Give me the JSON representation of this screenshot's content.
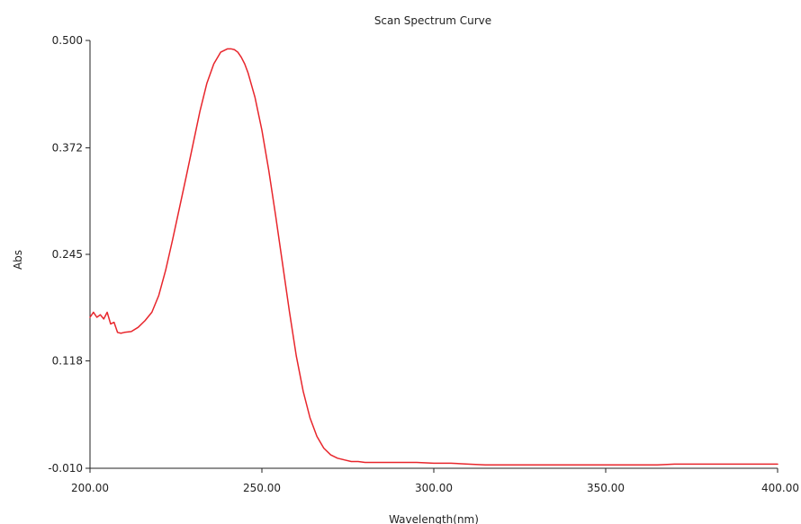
{
  "chart_data": {
    "type": "line",
    "title": "Scan Spectrum Curve",
    "xlabel": "Wavelength(nm)",
    "ylabel": "Abs",
    "xlim": [
      200,
      400
    ],
    "ylim": [
      -0.01,
      0.5
    ],
    "x_ticks": [
      "200.00",
      "250.00",
      "300.00",
      "350.00",
      "400.00"
    ],
    "x_tick_values": [
      200,
      250,
      300,
      350,
      400
    ],
    "y_ticks": [
      "0.500",
      "0.372",
      "0.245",
      "0.118",
      "-0.010"
    ],
    "y_tick_values": [
      0.5,
      0.372,
      0.245,
      0.118,
      -0.01
    ],
    "grid": false,
    "legend": "none",
    "color": "#e8262c",
    "series": [
      {
        "x": [
          200,
          201,
          202,
          203,
          204,
          205,
          206,
          207,
          208,
          209,
          210,
          212,
          214,
          216,
          218,
          220,
          222,
          224,
          226,
          228,
          230,
          232,
          234,
          236,
          238,
          240,
          241,
          242,
          243,
          244,
          245,
          246,
          248,
          250,
          252,
          254,
          256,
          258,
          260,
          262,
          264,
          266,
          268,
          270,
          272,
          274,
          276,
          278,
          280,
          285,
          290,
          295,
          300,
          305,
          310,
          315,
          320,
          325,
          330,
          335,
          340,
          345,
          350,
          355,
          360,
          365,
          370,
          375,
          380,
          385,
          390,
          395,
          400
        ],
        "y": [
          0.17,
          0.176,
          0.17,
          0.173,
          0.168,
          0.176,
          0.162,
          0.164,
          0.152,
          0.151,
          0.152,
          0.153,
          0.158,
          0.166,
          0.176,
          0.196,
          0.226,
          0.262,
          0.3,
          0.338,
          0.377,
          0.416,
          0.449,
          0.472,
          0.486,
          0.49,
          0.49,
          0.489,
          0.486,
          0.48,
          0.472,
          0.461,
          0.432,
          0.393,
          0.345,
          0.291,
          0.234,
          0.177,
          0.124,
          0.082,
          0.05,
          0.028,
          0.014,
          0.006,
          0.002,
          0.0,
          -0.002,
          -0.002,
          -0.003,
          -0.003,
          -0.003,
          -0.003,
          -0.004,
          -0.004,
          -0.005,
          -0.006,
          -0.006,
          -0.006,
          -0.006,
          -0.006,
          -0.006,
          -0.006,
          -0.006,
          -0.006,
          -0.006,
          -0.006,
          -0.005,
          -0.005,
          -0.005,
          -0.005,
          -0.005,
          -0.005,
          -0.005
        ]
      }
    ]
  }
}
